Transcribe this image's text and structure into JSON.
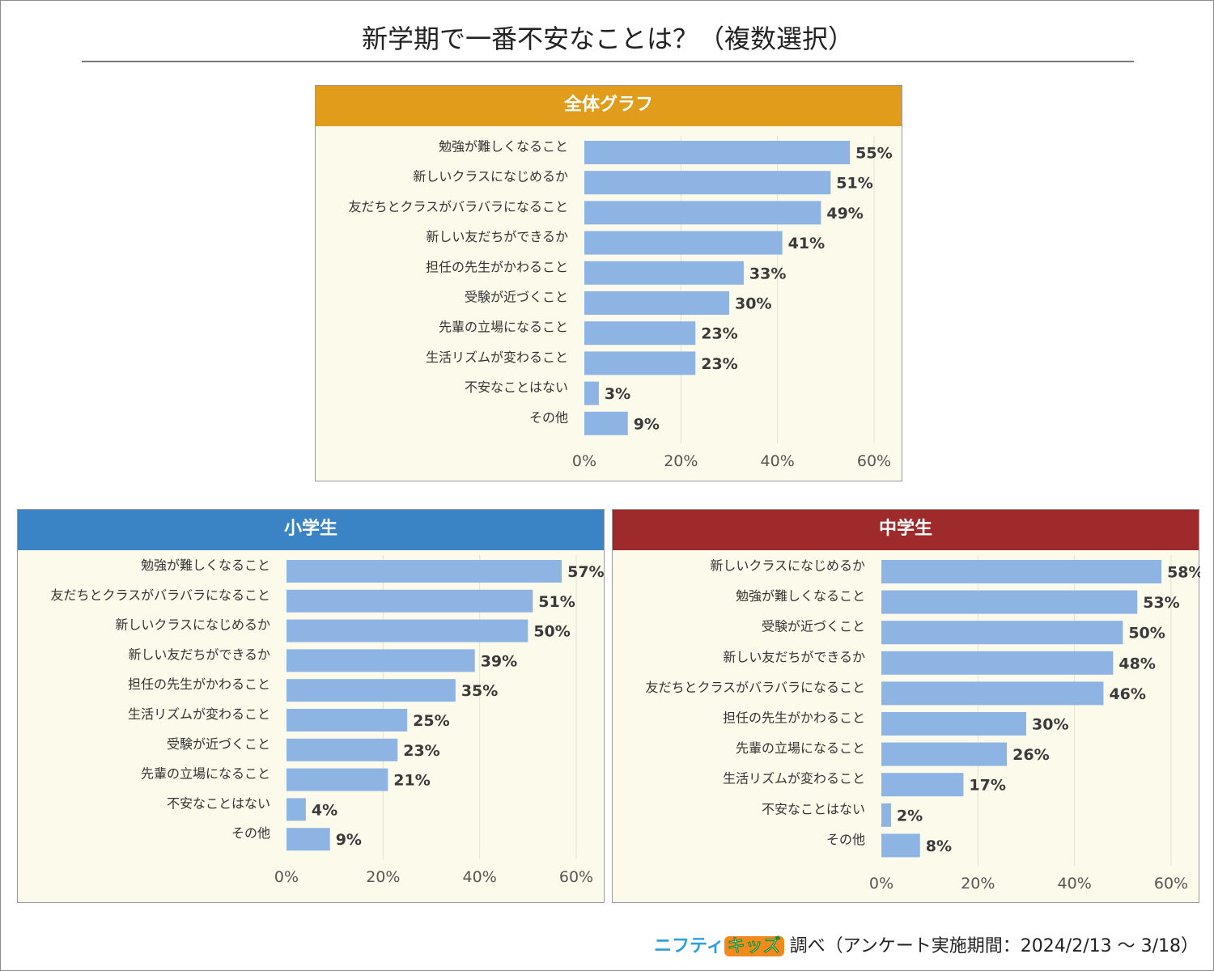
{
  "title": "新学期で一番不安なことは？（複数選択）",
  "colors": {
    "bar": "#8db4e2",
    "overall_header": "#e09c1a",
    "elementary_header": "#3a83c5",
    "junior_header": "#9e2a2b",
    "plot_bg": "#fcfaeb",
    "grid": "#e3e1d4"
  },
  "footer": {
    "brand_part1": "ニフティ",
    "brand_part2": "キッズ",
    "text": "調べ（アンケート実施期間：2024/2/13 ～ 3/18）"
  },
  "chart_data": [
    {
      "type": "bar",
      "orientation": "horizontal",
      "title": "全体グラフ",
      "categories": [
        "勉強が難しくなること",
        "新しいクラスになじめるか",
        "友だちとクラスがバラバラになること",
        "新しい友だちができるか",
        "担任の先生がかわること",
        "受験が近づくこと",
        "先輩の立場になること",
        "生活リズムが変わること",
        "不安なことはない",
        "その他"
      ],
      "values": [
        55,
        51,
        49,
        41,
        33,
        30,
        23,
        23,
        3,
        9
      ],
      "value_labels": [
        "55%",
        "51%",
        "49%",
        "41%",
        "33%",
        "30%",
        "23%",
        "23%",
        "3%",
        "9%"
      ],
      "xlim": [
        0,
        60
      ],
      "ticks": [
        "0%",
        "20%",
        "40%",
        "60%"
      ],
      "grid": true
    },
    {
      "type": "bar",
      "orientation": "horizontal",
      "title": "小学生",
      "categories": [
        "勉強が難しくなること",
        "友だちとクラスがバラバラになること",
        "新しいクラスになじめるか",
        "新しい友だちができるか",
        "担任の先生がかわること",
        "生活リズムが変わること",
        "受験が近づくこと",
        "先輩の立場になること",
        "不安なことはない",
        "その他"
      ],
      "values": [
        57,
        51,
        50,
        39,
        35,
        25,
        23,
        21,
        4,
        9
      ],
      "value_labels": [
        "57%",
        "51%",
        "50%",
        "39%",
        "35%",
        "25%",
        "23%",
        "21%",
        "4%",
        "9%"
      ],
      "xlim": [
        0,
        60
      ],
      "ticks": [
        "0%",
        "20%",
        "40%",
        "60%"
      ],
      "grid": true
    },
    {
      "type": "bar",
      "orientation": "horizontal",
      "title": "中学生",
      "categories": [
        "新しいクラスになじめるか",
        "勉強が難しくなること",
        "受験が近づくこと",
        "新しい友だちができるか",
        "友だちとクラスがバラバラになること",
        "担任の先生がかわること",
        "先輩の立場になること",
        "生活リズムが変わること",
        "不安なことはない",
        "その他"
      ],
      "values": [
        58,
        53,
        50,
        48,
        46,
        30,
        26,
        17,
        2,
        8
      ],
      "value_labels": [
        "58%",
        "53%",
        "50%",
        "48%",
        "46%",
        "30%",
        "26%",
        "17%",
        "2%",
        "8%"
      ],
      "xlim": [
        0,
        60
      ],
      "ticks": [
        "0%",
        "20%",
        "40%",
        "60%"
      ],
      "grid": true
    }
  ]
}
